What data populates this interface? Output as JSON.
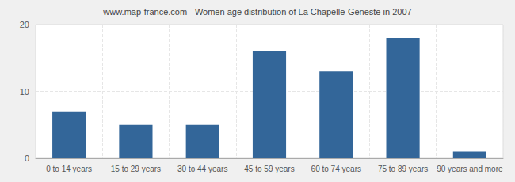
{
  "chart_data": {
    "type": "bar",
    "title": "www.map-france.com - Women age distribution of La Chapelle-Geneste in 2007",
    "categories": [
      "0 to 14 years",
      "15 to 29 years",
      "30 to 44 years",
      "45 to 59 years",
      "60 to 74 years",
      "75 to 89 years",
      "90 years and more"
    ],
    "values": [
      7,
      5,
      5,
      16,
      13,
      18,
      1
    ],
    "color": "#336699",
    "ylim": [
      0,
      20
    ],
    "yticks": [
      0,
      10,
      20
    ],
    "grid": true
  }
}
